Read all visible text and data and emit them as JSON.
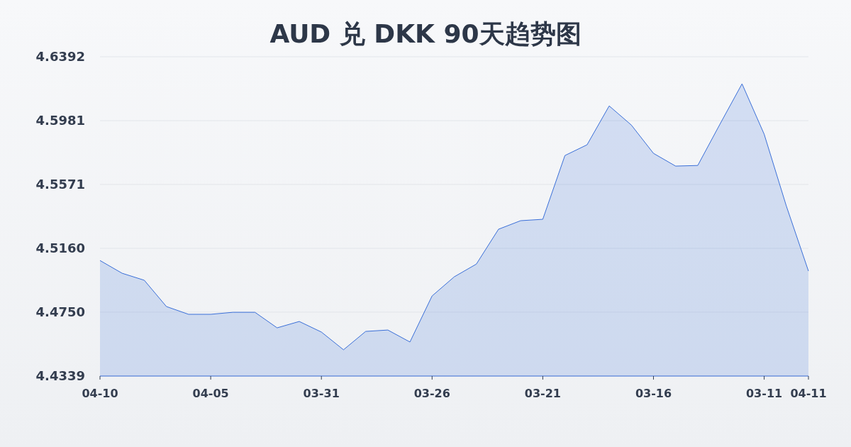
{
  "chart_data": {
    "type": "area",
    "title": "AUD 兑 DKK 90天趋势图",
    "categories": [
      "04-10",
      null,
      null,
      null,
      null,
      "04-05",
      null,
      null,
      null,
      null,
      "03-31",
      null,
      null,
      null,
      null,
      "03-26",
      null,
      null,
      null,
      null,
      "03-21",
      null,
      null,
      null,
      null,
      "03-16",
      null,
      null,
      null,
      null,
      "03-11",
      null,
      "04-11"
    ],
    "series": [
      {
        "color": "#3a6fd8",
        "values": [
          4.5082,
          4.5,
          4.4955,
          4.4786,
          4.4736,
          4.4736,
          4.4749,
          4.4749,
          4.4649,
          4.469,
          4.4622,
          4.4508,
          4.4626,
          4.4635,
          4.4558,
          4.4854,
          4.4977,
          4.5059,
          4.5283,
          4.5338,
          4.5347,
          4.5757,
          4.5826,
          4.6076,
          4.5953,
          4.5771,
          4.5689,
          4.5693,
          4.5958,
          4.6218,
          4.5894,
          4.5433,
          4.5014
        ]
      }
    ],
    "ylim": [
      4.4339,
      4.6392
    ],
    "yticks": [
      4.4339,
      {
        "value": 4.475,
        "label": "4.4750"
      },
      {
        "value": 4.516,
        "label": "4.5160"
      },
      4.5571,
      4.5981,
      4.6392
    ],
    "grid": "y",
    "marker": "none",
    "line_style": "solid"
  }
}
